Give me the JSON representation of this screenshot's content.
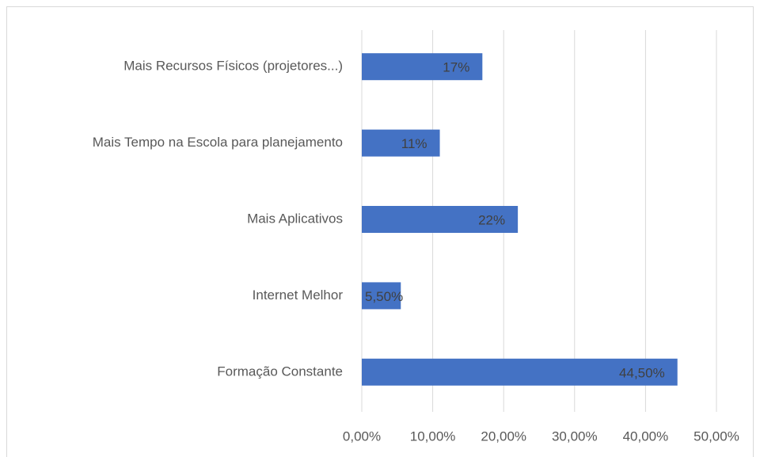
{
  "chart_data": {
    "type": "bar",
    "orientation": "horizontal",
    "categories": [
      "Mais Recursos Físicos (projetores...)",
      "Mais Tempo na Escola para planejamento",
      "Mais Aplicativos",
      "Internet Melhor",
      "Formação Constante"
    ],
    "values": [
      17,
      11,
      22,
      5.5,
      44.5
    ],
    "value_labels": [
      "17%",
      "11%",
      "22%",
      "5,50%",
      "44,50%"
    ],
    "color": "#4472c4",
    "xlim": [
      0,
      50
    ],
    "xticks": [
      {
        "value": 0,
        "label": "0,00%"
      },
      {
        "value": 10,
        "label": "10,00%"
      },
      {
        "value": 20,
        "label": "20,00%"
      },
      {
        "value": 30,
        "label": "30,00%"
      },
      {
        "value": 40,
        "label": "40,00%"
      },
      {
        "value": 50,
        "label": "50,00%"
      }
    ],
    "grid": true
  }
}
